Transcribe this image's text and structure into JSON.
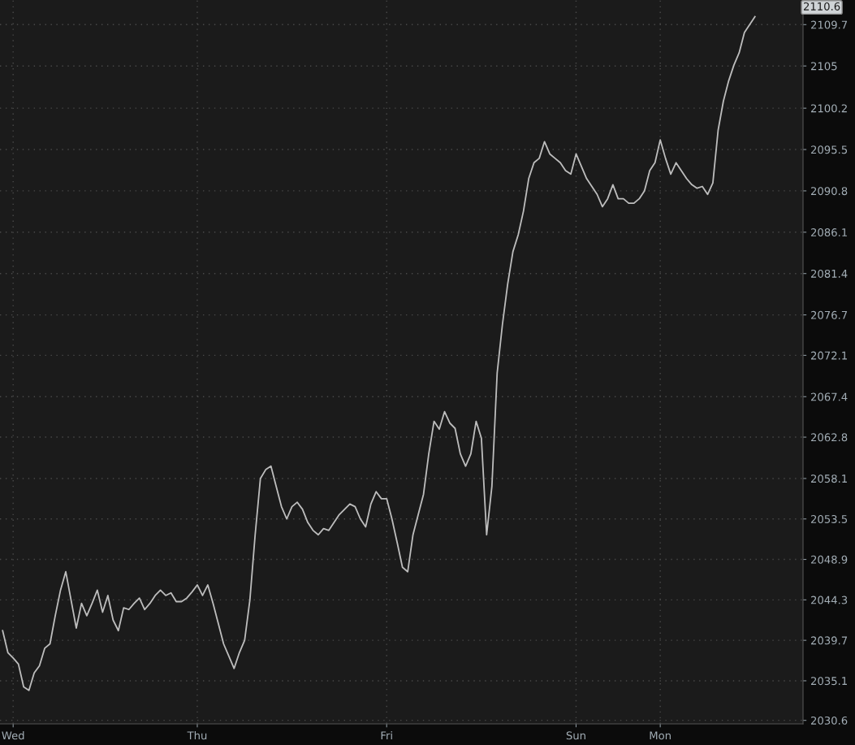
{
  "chart_data": {
    "type": "line",
    "categories": [
      null,
      null,
      "Wed",
      null,
      null,
      null,
      null,
      null,
      null,
      null,
      null,
      null,
      null,
      null,
      null,
      null,
      null,
      null,
      null,
      null,
      null,
      null,
      null,
      null,
      null,
      null,
      null,
      null,
      null,
      null,
      null,
      null,
      null,
      null,
      null,
      null,
      null,
      "Thu",
      null,
      null,
      null,
      null,
      null,
      null,
      null,
      null,
      null,
      null,
      null,
      null,
      null,
      null,
      null,
      null,
      null,
      null,
      null,
      null,
      null,
      null,
      null,
      null,
      null,
      null,
      null,
      null,
      null,
      null,
      null,
      null,
      null,
      null,
      null,
      "Fri",
      null,
      null,
      null,
      null,
      null,
      null,
      null,
      null,
      null,
      null,
      null,
      null,
      null,
      null,
      null,
      null,
      null,
      null,
      null,
      null,
      null,
      null,
      null,
      null,
      null,
      null,
      null,
      null,
      null,
      null,
      null,
      null,
      null,
      null,
      null,
      "Sun",
      null,
      null,
      null,
      null,
      null,
      null,
      null,
      null,
      null,
      null,
      null,
      null,
      null,
      null,
      null,
      "Mon",
      null,
      null,
      null,
      null,
      null,
      null,
      null,
      null,
      null,
      null,
      null,
      null,
      null,
      null,
      null,
      null,
      null,
      null
    ],
    "series": [
      {
        "color": "#bdbdbd",
        "values": [
          2040.8,
          2038.3,
          2037.7,
          2037.0,
          2034.4,
          2034.0,
          2036.0,
          2036.8,
          2038.8,
          2039.3,
          2042.5,
          2045.4,
          2047.5,
          2044.3,
          2041.1,
          2043.9,
          2042.5,
          2043.9,
          2045.4,
          2042.9,
          2044.8,
          2042.0,
          2040.8,
          2043.4,
          2043.2,
          2043.9,
          2044.5,
          2043.2,
          2043.9,
          2044.8,
          2045.4,
          2044.8,
          2045.1,
          2044.1,
          2044.1,
          2044.5,
          2045.2,
          2046.0,
          2044.8,
          2046.0,
          2043.9,
          2041.6,
          2039.3,
          2037.9,
          2036.5,
          2038.3,
          2039.7,
          2044.3,
          2051.7,
          2058.1,
          2059.1,
          2059.5,
          2057.2,
          2054.9,
          2053.5,
          2054.9,
          2055.4,
          2054.6,
          2053.1,
          2052.2,
          2051.7,
          2052.4,
          2052.2,
          2053.1,
          2054.0,
          2054.6,
          2055.2,
          2054.9,
          2053.5,
          2052.6,
          2055.2,
          2056.6,
          2055.8,
          2055.8,
          2053.5,
          2050.8,
          2048.0,
          2047.5,
          2051.7,
          2054.0,
          2056.3,
          2060.9,
          2064.6,
          2063.7,
          2065.7,
          2064.4,
          2063.8,
          2060.9,
          2059.5,
          2060.9,
          2064.6,
          2062.7,
          2051.7,
          2057.2,
          2070.1,
          2075.6,
          2080.2,
          2083.9,
          2085.8,
          2088.5,
          2092.2,
          2094.0,
          2094.5,
          2096.4,
          2095.0,
          2094.5,
          2094.0,
          2093.1,
          2092.7,
          2095.0,
          2093.6,
          2092.2,
          2091.3,
          2090.4,
          2089.0,
          2089.9,
          2091.5,
          2089.9,
          2089.9,
          2089.4,
          2089.4,
          2089.9,
          2090.8,
          2093.1,
          2094.0,
          2096.6,
          2094.5,
          2092.7,
          2094.0,
          2093.1,
          2092.2,
          2091.5,
          2091.1,
          2091.3,
          2090.4,
          2091.7,
          2097.7,
          2101.0,
          2103.3,
          2105.1,
          2106.5,
          2108.8,
          2109.7,
          2110.6
        ]
      }
    ],
    "ylim": [
      2030.2,
      2112.5
    ],
    "yticks": [
      2030.6,
      2035.1,
      2039.7,
      2044.3,
      2048.9,
      2053.5,
      2058.1,
      2062.8,
      2067.4,
      2072.1,
      2076.7,
      2081.4,
      2086.1,
      2090.8,
      2095.5,
      2100.2,
      2105,
      2109.7
    ],
    "annotations": [
      "2110.6"
    ],
    "grid": true,
    "legend": false
  }
}
